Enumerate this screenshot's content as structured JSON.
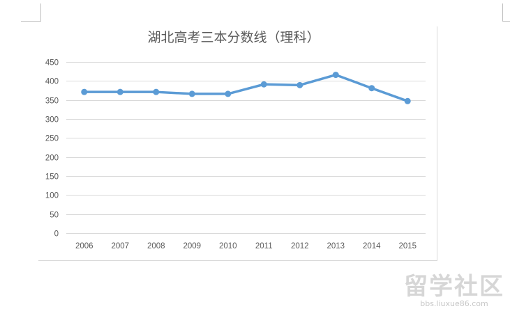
{
  "chart_data": {
    "type": "line",
    "title": "湖北高考三本分数线（理科）",
    "xlabel": "",
    "ylabel": "",
    "categories": [
      "2006",
      "2007",
      "2008",
      "2009",
      "2010",
      "2011",
      "2012",
      "2013",
      "2014",
      "2015"
    ],
    "values": [
      371,
      371,
      371,
      366,
      366,
      391,
      389,
      416,
      381,
      347
    ],
    "ylim": [
      0,
      450
    ],
    "yticks": [
      0,
      50,
      100,
      150,
      200,
      250,
      300,
      350,
      400,
      450
    ],
    "grid": true,
    "legend": "none",
    "line_color": "#5b9bd5"
  },
  "watermark": {
    "text": "留学社区",
    "url": "bbs.liuxue86.com"
  }
}
